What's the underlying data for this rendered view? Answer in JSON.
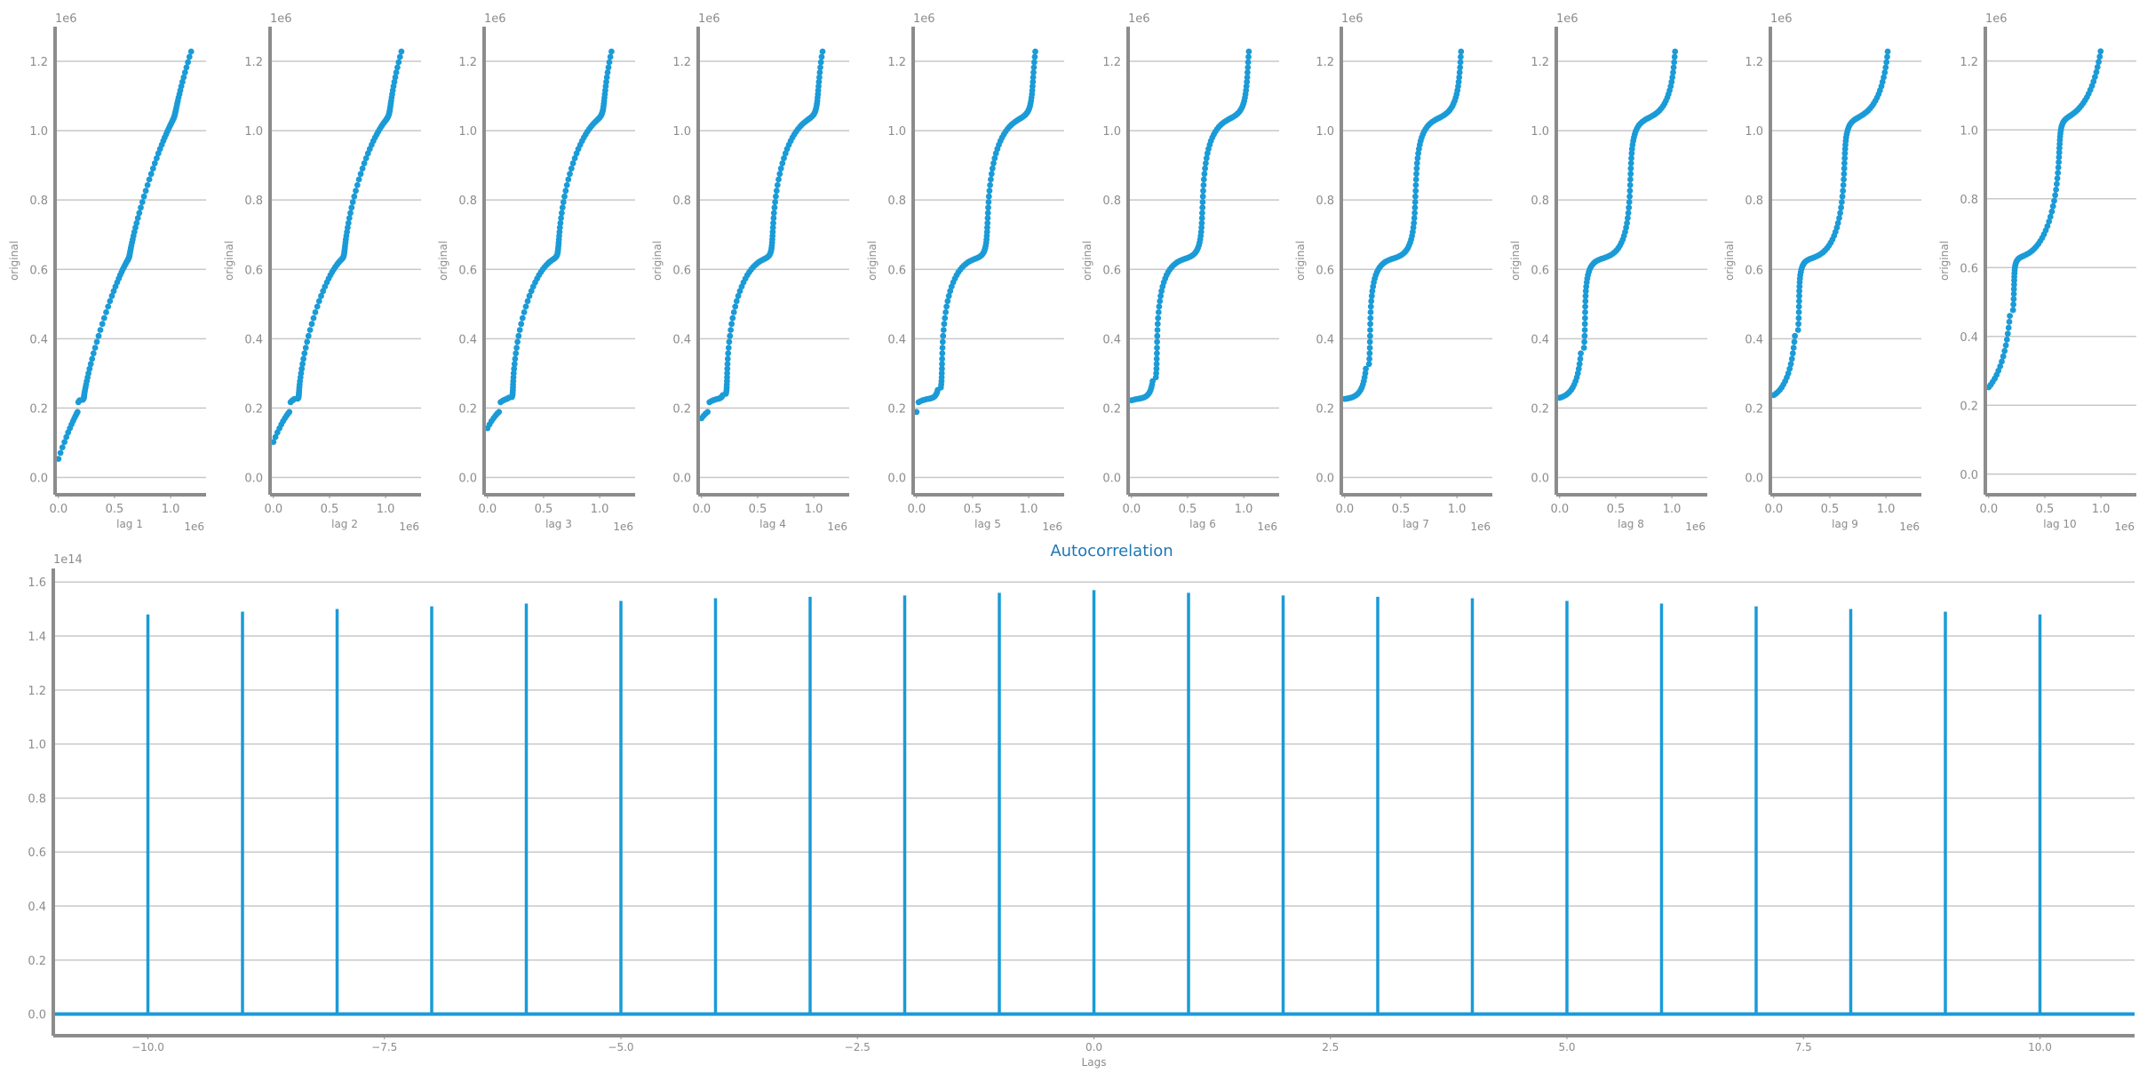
{
  "chart_data": [
    {
      "type": "scatter",
      "panel": "lag 1",
      "xlabel": "lag 1",
      "ylabel": "original",
      "x_offset_label": "1e6",
      "y_offset_label": "1e6",
      "xticks": [
        "0.0",
        "0.5",
        "1.0"
      ],
      "yticks": [
        "0.0",
        "0.2",
        "0.4",
        "0.6",
        "0.8",
        "1.0",
        "1.2"
      ],
      "xlim": [
        -0.03,
        1.3
      ],
      "ylim": [
        -0.05,
        1.3
      ],
      "lag": 1
    },
    {
      "type": "scatter",
      "panel": "lag 2",
      "xlabel": "lag 2",
      "ylabel": "original",
      "x_offset_label": "1e6",
      "y_offset_label": "1e6",
      "xticks": [
        "0.0",
        "0.5",
        "1.0"
      ],
      "yticks": [
        "0.0",
        "0.2",
        "0.4",
        "0.6",
        "0.8",
        "1.0",
        "1.2"
      ],
      "xlim": [
        -0.03,
        1.3
      ],
      "ylim": [
        -0.05,
        1.3
      ],
      "lag": 2
    },
    {
      "type": "scatter",
      "panel": "lag 3",
      "xlabel": "lag 3",
      "ylabel": "original",
      "x_offset_label": "1e6",
      "y_offset_label": "1e6",
      "xticks": [
        "0.0",
        "0.5",
        "1.0"
      ],
      "yticks": [
        "0.0",
        "0.2",
        "0.4",
        "0.6",
        "0.8",
        "1.0",
        "1.2"
      ],
      "xlim": [
        -0.03,
        1.3
      ],
      "ylim": [
        -0.05,
        1.3
      ],
      "lag": 3
    },
    {
      "type": "scatter",
      "panel": "lag 4",
      "xlabel": "lag 4",
      "ylabel": "original",
      "x_offset_label": "1e6",
      "y_offset_label": "1e6",
      "xticks": [
        "0.0",
        "0.5",
        "1.0"
      ],
      "yticks": [
        "0.0",
        "0.2",
        "0.4",
        "0.6",
        "0.8",
        "1.0",
        "1.2"
      ],
      "xlim": [
        -0.03,
        1.3
      ],
      "ylim": [
        -0.05,
        1.3
      ],
      "lag": 4
    },
    {
      "type": "scatter",
      "panel": "lag 5",
      "xlabel": "lag 5",
      "ylabel": "original",
      "x_offset_label": "1e6",
      "y_offset_label": "1e6",
      "xticks": [
        "0.0",
        "0.5",
        "1.0"
      ],
      "yticks": [
        "0.0",
        "0.2",
        "0.4",
        "0.6",
        "0.8",
        "1.0",
        "1.2"
      ],
      "xlim": [
        -0.03,
        1.3
      ],
      "ylim": [
        -0.05,
        1.3
      ],
      "lag": 5
    },
    {
      "type": "scatter",
      "panel": "lag 6",
      "xlabel": "lag 6",
      "ylabel": "original",
      "x_offset_label": "1e6",
      "y_offset_label": "1e6",
      "xticks": [
        "0.0",
        "0.5",
        "1.0"
      ],
      "yticks": [
        "0.0",
        "0.2",
        "0.4",
        "0.6",
        "0.8",
        "1.0",
        "1.2"
      ],
      "xlim": [
        -0.03,
        1.3
      ],
      "ylim": [
        -0.05,
        1.3
      ],
      "lag": 6
    },
    {
      "type": "scatter",
      "panel": "lag 7",
      "xlabel": "lag 7",
      "ylabel": "original",
      "x_offset_label": "1e6",
      "y_offset_label": "1e6",
      "xticks": [
        "0.0",
        "0.5",
        "1.0"
      ],
      "yticks": [
        "0.0",
        "0.2",
        "0.4",
        "0.6",
        "0.8",
        "1.0",
        "1.2"
      ],
      "xlim": [
        -0.03,
        1.3
      ],
      "ylim": [
        -0.05,
        1.3
      ],
      "lag": 7
    },
    {
      "type": "scatter",
      "panel": "lag 8",
      "xlabel": "lag 8",
      "ylabel": "original",
      "x_offset_label": "1e6",
      "y_offset_label": "1e6",
      "xticks": [
        "0.0",
        "0.5",
        "1.0"
      ],
      "yticks": [
        "0.0",
        "0.2",
        "0.4",
        "0.6",
        "0.8",
        "1.0",
        "1.2"
      ],
      "xlim": [
        -0.03,
        1.3
      ],
      "ylim": [
        -0.05,
        1.3
      ],
      "lag": 8
    },
    {
      "type": "scatter",
      "panel": "lag 9",
      "xlabel": "lag 9",
      "ylabel": "original",
      "x_offset_label": "1e6",
      "y_offset_label": "1e6",
      "xticks": [
        "0.0",
        "0.5",
        "1.0"
      ],
      "yticks": [
        "0.0",
        "0.2",
        "0.4",
        "0.6",
        "0.8",
        "1.0",
        "1.2"
      ],
      "xlim": [
        -0.03,
        1.3
      ],
      "ylim": [
        -0.05,
        1.3
      ],
      "lag": 9
    },
    {
      "type": "scatter",
      "panel": "lag 10",
      "xlabel": "lag 10",
      "ylabel": "original",
      "x_offset_label": "1e6",
      "y_offset_label": "1e6",
      "xticks": [
        "0.0",
        "0.5",
        "1.0"
      ],
      "yticks": [
        "0.0",
        "0.2",
        "0.4",
        "0.6",
        "0.8",
        "1.0",
        "1.2"
      ],
      "xlim": [
        -0.03,
        1.3
      ],
      "ylim": [
        -0.06,
        1.3
      ],
      "lag": 10
    },
    {
      "type": "bar",
      "title": "Autocorrelation",
      "xlabel": "Lags",
      "ylabel": "",
      "y_offset_label": "1e14",
      "xlim": [
        -11,
        11
      ],
      "ylim": [
        -0.08,
        1.65
      ],
      "xticks": [
        "−10.0",
        "−7.5",
        "−5.0",
        "−2.5",
        "0.0",
        "2.5",
        "5.0",
        "7.5",
        "10.0"
      ],
      "xtick_values": [
        -10,
        -7.5,
        -5,
        -2.5,
        0,
        2.5,
        5,
        7.5,
        10
      ],
      "yticks": [
        "0.0",
        "0.2",
        "0.4",
        "0.6",
        "0.8",
        "1.0",
        "1.2",
        "1.4",
        "1.6"
      ],
      "ytick_values": [
        0,
        0.2,
        0.4,
        0.6,
        0.8,
        1.0,
        1.2,
        1.4,
        1.6
      ],
      "x": [
        -10,
        -9,
        -8,
        -7,
        -6,
        -5,
        -4,
        -3,
        -2,
        -1,
        0,
        1,
        2,
        3,
        4,
        5,
        6,
        7,
        8,
        9,
        10
      ],
      "values": [
        1.48,
        1.49,
        1.5,
        1.51,
        1.52,
        1.53,
        1.54,
        1.545,
        1.55,
        1.56,
        1.57,
        1.56,
        1.55,
        1.545,
        1.54,
        1.53,
        1.52,
        1.51,
        1.5,
        1.49,
        1.48
      ],
      "grid": "horizontal"
    }
  ],
  "colors": {
    "series": "#1a9bd7",
    "grid": "#c8c8c8",
    "axis": "#8c8c8c",
    "title": "#1f77b4"
  }
}
